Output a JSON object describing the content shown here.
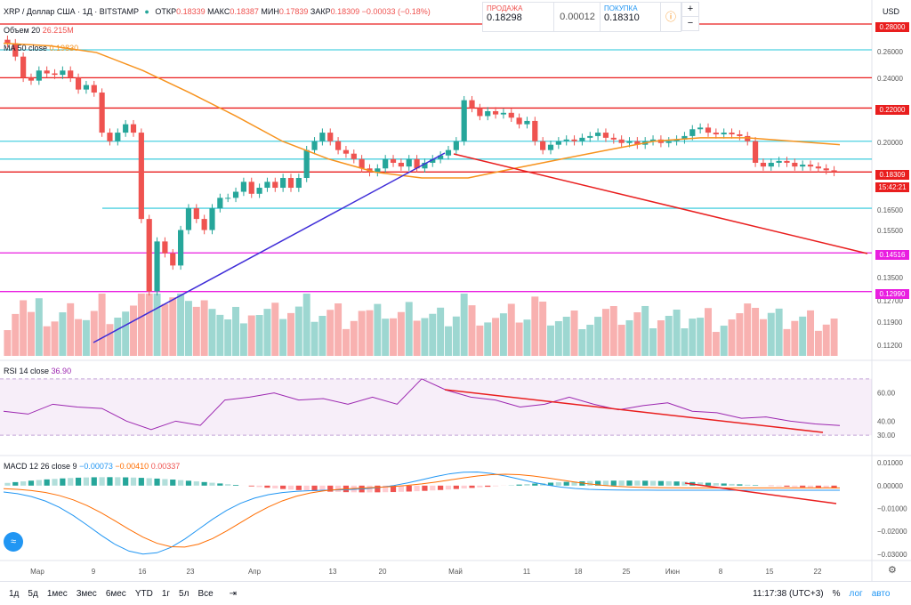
{
  "header": {
    "symbol": "XRP / Доллар США · 1Д · BITSTAMP",
    "open_label": "ОТКР",
    "open": "0.18339",
    "high_label": "МАКС",
    "high": "0.18387",
    "low_label": "МИН",
    "low": "0.17839",
    "close_label": "ЗАКР",
    "close": "0.18309",
    "change": "−0.00033 (−0.18%)",
    "volume_label": "Объем 20",
    "volume_value": "26.215M",
    "ma_label": "MA 50 close",
    "ma_value": "0.19830",
    "rsi_label": "RSI 14 close",
    "rsi_value": "36.90",
    "macd_label": "MACD 12 26 close 9",
    "macd_values": [
      "−0.00073",
      "−0.00410",
      "0.00337"
    ]
  },
  "trade_panel": {
    "sell_label": "ПРОДАЖА",
    "sell_price": "0.18298",
    "spread": "0.00012",
    "buy_label": "ПОКУПКА",
    "buy_price": "0.18310",
    "currency": "USD"
  },
  "price_axis": {
    "ticks": [
      "0.26000",
      "0.24000",
      "0.20000",
      "0.16500",
      "0.15500",
      "0.13500",
      "0.12700",
      "0.11900",
      "0.11200"
    ],
    "tags": [
      {
        "text": "0.28000",
        "color": "#e91e1e"
      },
      {
        "text": "0.22000",
        "color": "#e91e1e"
      },
      {
        "text": "0.18309",
        "color": "#e91e1e"
      },
      {
        "text": "15:42:21",
        "color": "#e91e1e"
      },
      {
        "text": "0.14516",
        "color": "#e91ee0"
      },
      {
        "text": "0.12990",
        "color": "#e91ee0"
      }
    ]
  },
  "rsi_axis": [
    "60.00",
    "40.00",
    "30.00"
  ],
  "macd_axis": [
    "0.01000",
    "0.00000",
    "−0.01000",
    "−0.02000",
    "−0.03000"
  ],
  "time_axis": [
    "Мар",
    "9",
    "16",
    "23",
    "Апр",
    "13",
    "20",
    "Май",
    "11",
    "18",
    "25",
    "Июн",
    "8",
    "15",
    "22"
  ],
  "toolbar": {
    "ranges": [
      "1д",
      "5д",
      "1мес",
      "3мес",
      "6мес",
      "YTD",
      "1г",
      "5л",
      "Все"
    ],
    "time": "11:17:38 (UTC+3)",
    "percent": "%",
    "log": "лог",
    "auto": "авто"
  },
  "chart_data": {
    "type": "candlestick",
    "title": "XRP / Доллар США · 1Д · BITSTAMP",
    "y_scale": "log",
    "ylim": [
      0.108,
      0.3
    ],
    "horizontal_lines": [
      0.28,
      0.26,
      0.24,
      0.22,
      0.2,
      0.19,
      0.1831,
      0.165,
      0.14516,
      0.1299
    ],
    "x_range": [
      "2020-02-24",
      "2020-06-24"
    ],
    "close_series": [
      0.265,
      0.255,
      0.24,
      0.238,
      0.245,
      0.243,
      0.242,
      0.245,
      0.24,
      0.232,
      0.235,
      0.23,
      0.205,
      0.2,
      0.205,
      0.21,
      0.205,
      0.16,
      0.13,
      0.15,
      0.145,
      0.14,
      0.155,
      0.165,
      0.16,
      0.155,
      0.165,
      0.17,
      0.17,
      0.173,
      0.178,
      0.172,
      0.175,
      0.178,
      0.175,
      0.18,
      0.175,
      0.18,
      0.195,
      0.2,
      0.205,
      0.2,
      0.195,
      0.193,
      0.19,
      0.185,
      0.183,
      0.185,
      0.19,
      0.188,
      0.186,
      0.19,
      0.185,
      0.188,
      0.19,
      0.192,
      0.195,
      0.2,
      0.225,
      0.22,
      0.215,
      0.218,
      0.216,
      0.217,
      0.214,
      0.21,
      0.212,
      0.2,
      0.195,
      0.198,
      0.2,
      0.201,
      0.2,
      0.202,
      0.203,
      0.205,
      0.202,
      0.201,
      0.199,
      0.2,
      0.198,
      0.2,
      0.201,
      0.199,
      0.2,
      0.201,
      0.203,
      0.207,
      0.208,
      0.205,
      0.204,
      0.205,
      0.204,
      0.203,
      0.2,
      0.188,
      0.186,
      0.188,
      0.189,
      0.188,
      0.186,
      0.187,
      0.186,
      0.185,
      0.184,
      0.1831
    ],
    "ma50": [
      0.265,
      0.263,
      0.258,
      0.245,
      0.23,
      0.215,
      0.2,
      0.19,
      0.183,
      0.18,
      0.18,
      0.185,
      0.19,
      0.195,
      0.2,
      0.202,
      0.202,
      0.2,
      0.198
    ],
    "rsi": [
      47,
      45,
      52,
      50,
      49,
      40,
      34,
      40,
      37,
      55,
      57,
      60,
      55,
      56,
      52,
      57,
      52,
      70,
      62,
      57,
      55,
      50,
      52,
      57,
      52,
      48,
      51,
      53,
      47,
      46,
      42,
      43,
      40,
      38,
      36.9
    ],
    "rsi_levels": [
      70,
      30
    ],
    "macd_ylim": [
      -0.032,
      0.012
    ],
    "annotations": [
      "trendline up (blue)",
      "trendline down (red)",
      "RSI divergence arrow",
      "MACD divergence arrow"
    ]
  }
}
